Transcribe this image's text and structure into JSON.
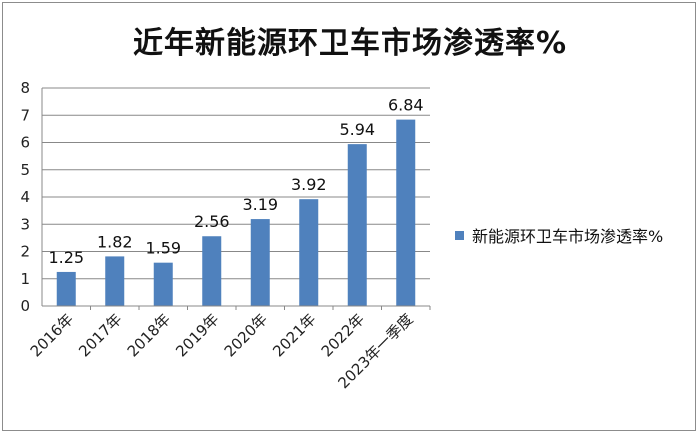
{
  "chart_data": {
    "type": "bar",
    "title": "近年新能源环卫车市场渗透率%",
    "categories": [
      "2016年",
      "2017年",
      "2018年",
      "2019年",
      "2020年",
      "2021年",
      "2022年",
      "2023年一季度"
    ],
    "series": [
      {
        "name": "新能源环卫车市场渗透率%",
        "values": [
          1.25,
          1.82,
          1.59,
          2.56,
          3.19,
          3.92,
          5.94,
          6.84
        ]
      }
    ],
    "data_labels": [
      "1.25",
      "1.82",
      "1.59",
      "2.56",
      "3.19",
      "3.92",
      "5.94",
      "6.84"
    ],
    "y_ticks": [
      "0",
      "1",
      "2",
      "3",
      "4",
      "5",
      "6",
      "7",
      "8"
    ],
    "ylim": [
      0,
      8
    ],
    "grid": true,
    "legend_position": "right",
    "bar_color": "#4f81bd",
    "grid_color": "#888888"
  }
}
